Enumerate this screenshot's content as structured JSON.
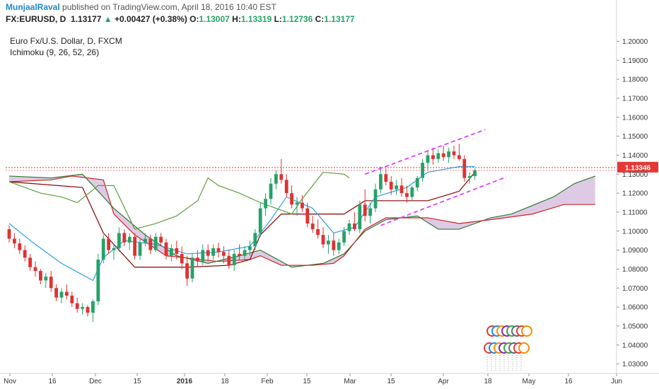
{
  "header": {
    "author": "MunjaalRaval",
    "published_text": "published on TradingView.com, April 18, 2016 10:40 EST"
  },
  "quote": {
    "symbol": "FX:EURUSD, D",
    "last": "1.13177",
    "change": "+0.00427 (+0.38%)",
    "open_label": "O:",
    "open": "1.13007",
    "high_label": "H:",
    "high": "1.13319",
    "low_label": "L:",
    "low": "1.12736",
    "close_label": "C:",
    "close": "1.13177"
  },
  "chart_data": {
    "type": "candlestick",
    "title": "Euro Fx/U.S. Dollar, D, FXCM",
    "indicator": "Ichimoku (9, 26, 52, 26)",
    "current_price_label": "1.13346",
    "ylim": [
      1.025,
      1.205
    ],
    "yticks": [
      "1.20000",
      "1.19000",
      "1.18000",
      "1.17000",
      "1.16000",
      "1.15000",
      "1.14000",
      "1.13000",
      "1.12000",
      "1.11000",
      "1.10000",
      "1.09000",
      "1.08000",
      "1.07000",
      "1.06000",
      "1.05000",
      "1.04000",
      "1.03000"
    ],
    "xticks": [
      {
        "label": "Nov",
        "bold": false
      },
      {
        "label": "16",
        "bold": false
      },
      {
        "label": "Dec",
        "bold": false
      },
      {
        "label": "15",
        "bold": false
      },
      {
        "label": "2016",
        "bold": true
      },
      {
        "label": "18",
        "bold": false
      },
      {
        "label": "Feb",
        "bold": false
      },
      {
        "label": "15",
        "bold": false
      },
      {
        "label": "Mar",
        "bold": false
      },
      {
        "label": "15",
        "bold": false
      },
      {
        "label": "Apr",
        "bold": false
      },
      {
        "label": "18",
        "bold": false
      },
      {
        "label": "May",
        "bold": false
      },
      {
        "label": "16",
        "bold": false
      },
      {
        "label": "Jun",
        "bold": false
      }
    ],
    "horizontal_line": 1.1335,
    "colors": {
      "up": "#26a269",
      "down": "#e03131",
      "tenkan": "#2aa1e8",
      "kijun": "#8b0000",
      "chikou": "#5e9f3a",
      "span_a": "#2e7d32",
      "span_b": "#c62828",
      "cloud": "#d4b8dc",
      "channel": "#e040fb",
      "hline": "#e53935"
    },
    "candles": [
      [
        1.101,
        1.103,
        1.094,
        1.096
      ],
      [
        1.096,
        1.099,
        1.091,
        1.0935
      ],
      [
        1.0935,
        1.096,
        1.088,
        1.09
      ],
      [
        1.09,
        1.0925,
        1.084,
        1.086
      ],
      [
        1.086,
        1.088,
        1.079,
        1.081
      ],
      [
        1.081,
        1.084,
        1.076,
        1.079
      ],
      [
        1.079,
        1.08,
        1.072,
        1.074
      ],
      [
        1.074,
        1.078,
        1.07,
        1.076
      ],
      [
        1.076,
        1.079,
        1.068,
        1.07
      ],
      [
        1.07,
        1.072,
        1.063,
        1.065
      ],
      [
        1.065,
        1.07,
        1.062,
        1.068
      ],
      [
        1.068,
        1.072,
        1.064,
        1.066
      ],
      [
        1.066,
        1.068,
        1.06,
        1.062
      ],
      [
        1.062,
        1.065,
        1.057,
        1.059
      ],
      [
        1.059,
        1.062,
        1.056,
        1.06
      ],
      [
        1.06,
        1.061,
        1.055,
        1.057
      ],
      [
        1.057,
        1.064,
        1.052,
        1.063
      ],
      [
        1.063,
        1.088,
        1.061,
        1.085
      ],
      [
        1.085,
        1.098,
        1.083,
        1.096
      ],
      [
        1.096,
        1.099,
        1.088,
        1.09
      ],
      [
        1.09,
        1.093,
        1.085,
        1.091
      ],
      [
        1.091,
        1.102,
        1.089,
        1.099
      ],
      [
        1.099,
        1.101,
        1.092,
        1.094
      ],
      [
        1.094,
        1.099,
        1.09,
        1.097
      ],
      [
        1.097,
        1.099,
        1.085,
        1.087
      ],
      [
        1.087,
        1.096,
        1.085,
        1.094
      ],
      [
        1.094,
        1.099,
        1.092,
        1.096
      ],
      [
        1.096,
        1.098,
        1.088,
        1.09
      ],
      [
        1.09,
        1.099,
        1.089,
        1.097
      ],
      [
        1.097,
        1.099,
        1.092,
        1.094
      ],
      [
        1.094,
        1.096,
        1.085,
        1.087
      ],
      [
        1.087,
        1.093,
        1.084,
        1.091
      ],
      [
        1.091,
        1.095,
        1.085,
        1.088
      ],
      [
        1.088,
        1.092,
        1.08,
        1.083
      ],
      [
        1.083,
        1.087,
        1.071,
        1.075
      ],
      [
        1.075,
        1.088,
        1.073,
        1.086
      ],
      [
        1.086,
        1.09,
        1.081,
        1.084
      ],
      [
        1.084,
        1.093,
        1.082,
        1.09
      ],
      [
        1.09,
        1.093,
        1.084,
        1.087
      ],
      [
        1.087,
        1.093,
        1.085,
        1.091
      ],
      [
        1.091,
        1.094,
        1.086,
        1.089
      ],
      [
        1.089,
        1.092,
        1.083,
        1.087
      ],
      [
        1.087,
        1.09,
        1.08,
        1.082
      ],
      [
        1.082,
        1.09,
        1.079,
        1.088
      ],
      [
        1.088,
        1.093,
        1.085,
        1.087
      ],
      [
        1.087,
        1.092,
        1.084,
        1.09
      ],
      [
        1.09,
        1.095,
        1.087,
        1.092
      ],
      [
        1.092,
        1.101,
        1.09,
        1.099
      ],
      [
        1.099,
        1.115,
        1.097,
        1.112
      ],
      [
        1.112,
        1.12,
        1.108,
        1.117
      ],
      [
        1.117,
        1.128,
        1.114,
        1.125
      ],
      [
        1.125,
        1.132,
        1.122,
        1.13
      ],
      [
        1.13,
        1.138,
        1.125,
        1.127
      ],
      [
        1.127,
        1.13,
        1.118,
        1.12
      ],
      [
        1.12,
        1.124,
        1.112,
        1.114
      ],
      [
        1.114,
        1.118,
        1.108,
        1.115
      ],
      [
        1.115,
        1.119,
        1.11,
        1.112
      ],
      [
        1.112,
        1.115,
        1.102,
        1.104
      ],
      [
        1.104,
        1.108,
        1.099,
        1.101
      ],
      [
        1.101,
        1.106,
        1.096,
        1.098
      ],
      [
        1.098,
        1.102,
        1.091,
        1.093
      ],
      [
        1.093,
        1.098,
        1.088,
        1.095
      ],
      [
        1.095,
        1.099,
        1.087,
        1.09
      ],
      [
        1.09,
        1.096,
        1.088,
        1.094
      ],
      [
        1.094,
        1.102,
        1.092,
        1.1
      ],
      [
        1.1,
        1.106,
        1.098,
        1.104
      ],
      [
        1.104,
        1.11,
        1.1,
        1.101
      ],
      [
        1.101,
        1.116,
        1.099,
        1.114
      ],
      [
        1.114,
        1.122,
        1.105,
        1.108
      ],
      [
        1.108,
        1.115,
        1.104,
        1.112
      ],
      [
        1.112,
        1.125,
        1.11,
        1.122
      ],
      [
        1.122,
        1.134,
        1.12,
        1.13
      ],
      [
        1.13,
        1.133,
        1.124,
        1.126
      ],
      [
        1.126,
        1.129,
        1.119,
        1.122
      ],
      [
        1.122,
        1.127,
        1.119,
        1.124
      ],
      [
        1.124,
        1.128,
        1.118,
        1.12
      ],
      [
        1.12,
        1.124,
        1.115,
        1.118
      ],
      [
        1.118,
        1.124,
        1.116,
        1.123
      ],
      [
        1.123,
        1.129,
        1.121,
        1.128
      ],
      [
        1.128,
        1.138,
        1.126,
        1.136
      ],
      [
        1.136,
        1.142,
        1.132,
        1.14
      ],
      [
        1.14,
        1.144,
        1.135,
        1.138
      ],
      [
        1.138,
        1.143,
        1.136,
        1.141
      ],
      [
        1.141,
        1.145,
        1.137,
        1.139
      ],
      [
        1.139,
        1.144,
        1.136,
        1.142
      ],
      [
        1.142,
        1.145,
        1.138,
        1.14
      ],
      [
        1.14,
        1.146,
        1.137,
        1.138
      ],
      [
        1.138,
        1.14,
        1.126,
        1.128
      ],
      [
        1.128,
        1.131,
        1.125,
        1.129
      ],
      [
        1.129,
        1.133,
        1.127,
        1.132
      ]
    ],
    "tenkan": [
      [
        0,
        1.104
      ],
      [
        5,
        1.093
      ],
      [
        10,
        1.083
      ],
      [
        16,
        1.074
      ],
      [
        18,
        1.086
      ],
      [
        22,
        1.095
      ],
      [
        28,
        1.093
      ],
      [
        34,
        1.088
      ],
      [
        40,
        1.089
      ],
      [
        46,
        1.092
      ],
      [
        50,
        1.106
      ],
      [
        53,
        1.118
      ],
      [
        58,
        1.112
      ],
      [
        62,
        1.099
      ],
      [
        66,
        1.102
      ],
      [
        70,
        1.118
      ],
      [
        76,
        1.123
      ],
      [
        80,
        1.131
      ],
      [
        86,
        1.134
      ],
      [
        89,
        1.134
      ]
    ],
    "kijun": [
      [
        0,
        1.126
      ],
      [
        14,
        1.123
      ],
      [
        18,
        1.099
      ],
      [
        24,
        1.081
      ],
      [
        34,
        1.081
      ],
      [
        42,
        1.082
      ],
      [
        46,
        1.085
      ],
      [
        48,
        1.098
      ],
      [
        52,
        1.109
      ],
      [
        64,
        1.109
      ],
      [
        68,
        1.116
      ],
      [
        74,
        1.116
      ],
      [
        80,
        1.116
      ],
      [
        86,
        1.121
      ],
      [
        89,
        1.131
      ]
    ],
    "span_a": [
      [
        0,
        1.129
      ],
      [
        8,
        1.128
      ],
      [
        14,
        1.13
      ],
      [
        20,
        1.112
      ],
      [
        26,
        1.098
      ],
      [
        32,
        1.087
      ],
      [
        38,
        1.083
      ],
      [
        44,
        1.087
      ],
      [
        48,
        1.09
      ],
      [
        54,
        1.081
      ],
      [
        60,
        1.083
      ],
      [
        64,
        1.088
      ],
      [
        68,
        1.1
      ],
      [
        72,
        1.106
      ],
      [
        78,
        1.108
      ],
      [
        82,
        1.101
      ],
      [
        86,
        1.101
      ],
      [
        92,
        1.107
      ],
      [
        96,
        1.109
      ],
      [
        104,
        1.118
      ],
      [
        108,
        1.125
      ],
      [
        112,
        1.129
      ]
    ],
    "span_b": [
      [
        0,
        1.126
      ],
      [
        8,
        1.127
      ],
      [
        12,
        1.129
      ],
      [
        18,
        1.127
      ],
      [
        20,
        1.109
      ],
      [
        24,
        1.098
      ],
      [
        30,
        1.087
      ],
      [
        40,
        1.084
      ],
      [
        46,
        1.085
      ],
      [
        48,
        1.087
      ],
      [
        52,
        1.082
      ],
      [
        58,
        1.082
      ],
      [
        62,
        1.083
      ],
      [
        64,
        1.087
      ],
      [
        68,
        1.101
      ],
      [
        72,
        1.107
      ],
      [
        80,
        1.107
      ],
      [
        86,
        1.104
      ],
      [
        92,
        1.106
      ],
      [
        100,
        1.109
      ],
      [
        106,
        1.114
      ],
      [
        112,
        1.114
      ]
    ],
    "chikou": [
      [
        0,
        1.126
      ],
      [
        6,
        1.12
      ],
      [
        10,
        1.118
      ],
      [
        13,
        1.115
      ],
      [
        17,
        1.124
      ],
      [
        20,
        1.124
      ],
      [
        24,
        1.101
      ],
      [
        28,
        1.104
      ],
      [
        32,
        1.108
      ],
      [
        36,
        1.116
      ],
      [
        38,
        1.128
      ],
      [
        40,
        1.124
      ],
      [
        44,
        1.12
      ],
      [
        48,
        1.115
      ],
      [
        52,
        1.111
      ],
      [
        54,
        1.109
      ],
      [
        56,
        1.117
      ],
      [
        60,
        1.131
      ],
      [
        64,
        1.13
      ],
      [
        65,
        1.128
      ]
    ],
    "channel_upper": [
      [
        1.13,
        1.13
      ],
      [
        8.0,
        1.1535
      ]
    ],
    "channel_lower": [
      [
        1.102,
        1.102
      ],
      [
        15.0,
        1.125
      ]
    ]
  }
}
